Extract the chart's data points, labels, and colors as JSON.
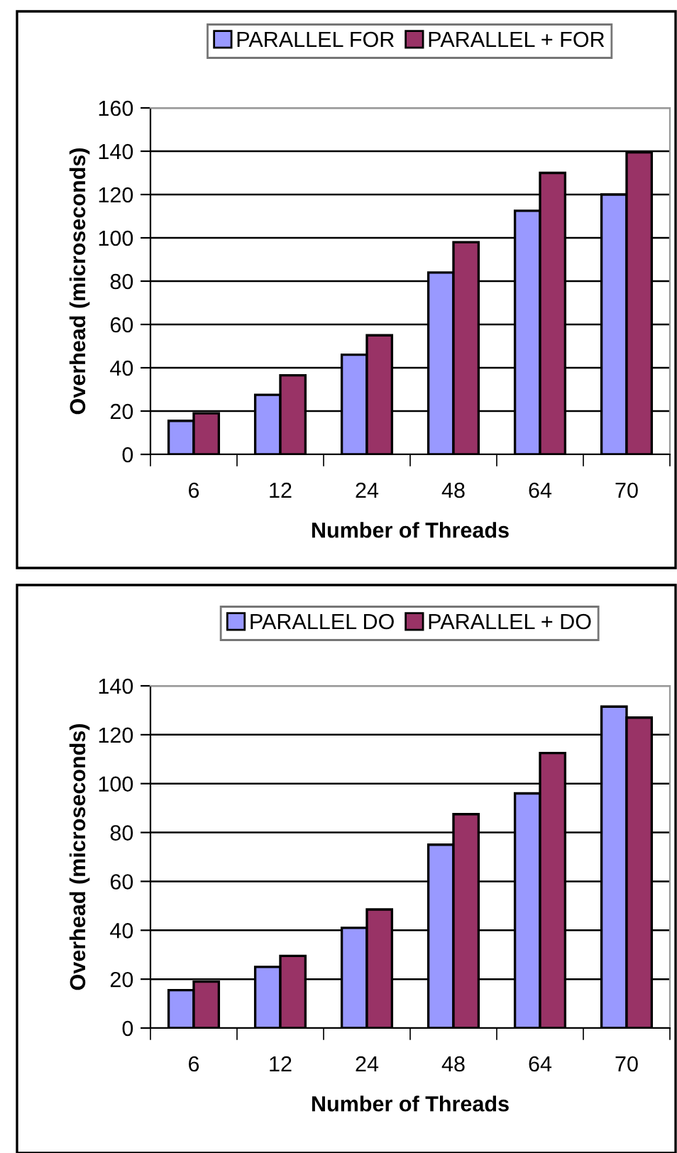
{
  "chart_data": [
    {
      "type": "bar",
      "categories": [
        "6",
        "12",
        "24",
        "48",
        "64",
        "70"
      ],
      "xlabel": "Number of Threads",
      "ylabel": "Overhead (microseconds)",
      "ylim": [
        0,
        160
      ],
      "yticks": [
        0,
        20,
        40,
        60,
        80,
        100,
        120,
        140,
        160
      ],
      "grid": "y",
      "legend": "top",
      "series": [
        {
          "name": "PARALLEL FOR",
          "color": "#9999ff",
          "values": [
            15.5,
            27.5,
            46,
            84,
            112.5,
            120
          ]
        },
        {
          "name": "PARALLEL + FOR",
          "color": "#993366",
          "values": [
            19,
            36.5,
            55,
            98,
            130,
            139.5
          ]
        }
      ]
    },
    {
      "type": "bar",
      "categories": [
        "6",
        "12",
        "24",
        "48",
        "64",
        "70"
      ],
      "xlabel": "Number of Threads",
      "ylabel": "Overhead (microseconds)",
      "ylim": [
        0,
        140
      ],
      "yticks": [
        0,
        20,
        40,
        60,
        80,
        100,
        120,
        140
      ],
      "grid": "y",
      "legend": "top",
      "series": [
        {
          "name": "PARALLEL DO",
          "color": "#9999ff",
          "values": [
            15.5,
            25,
            41,
            75,
            96,
            131.5
          ]
        },
        {
          "name": "PARALLEL + DO",
          "color": "#993366",
          "values": [
            19,
            29.5,
            48.5,
            87.5,
            112.5,
            127
          ]
        }
      ]
    }
  ]
}
